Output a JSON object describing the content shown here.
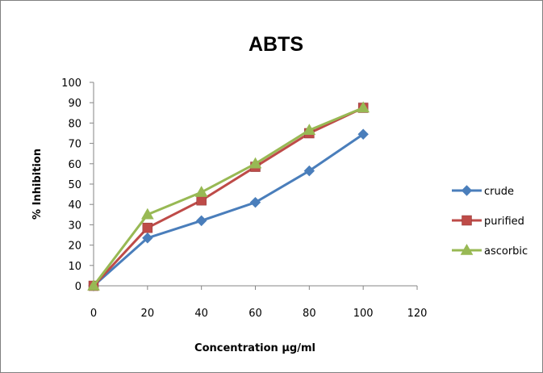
{
  "chart_data": {
    "type": "line",
    "title": "ABTS",
    "xlabel": "Concentration µg/ml",
    "ylabel": "% Inhibition",
    "x": [
      0,
      20,
      40,
      60,
      80,
      100
    ],
    "xlim": [
      0,
      120
    ],
    "xticks": [
      0,
      20,
      40,
      60,
      80,
      100,
      120
    ],
    "ylim": [
      0,
      100
    ],
    "yticks": [
      0,
      10,
      20,
      30,
      40,
      50,
      60,
      70,
      80,
      90,
      100
    ],
    "grid": false,
    "legend_position": "right",
    "series": [
      {
        "name": "crude",
        "values": [
          0,
          23.5,
          32,
          41,
          56.5,
          74.5
        ],
        "color": "#4a7ebb",
        "marker": "diamond"
      },
      {
        "name": "purified",
        "values": [
          0,
          28.5,
          42,
          58.5,
          75,
          87.5
        ],
        "color": "#be4b48",
        "marker": "square"
      },
      {
        "name": "ascorbic",
        "values": [
          0,
          35,
          46,
          60,
          76.5,
          87.5
        ],
        "color": "#98b954",
        "marker": "triangle"
      }
    ]
  }
}
